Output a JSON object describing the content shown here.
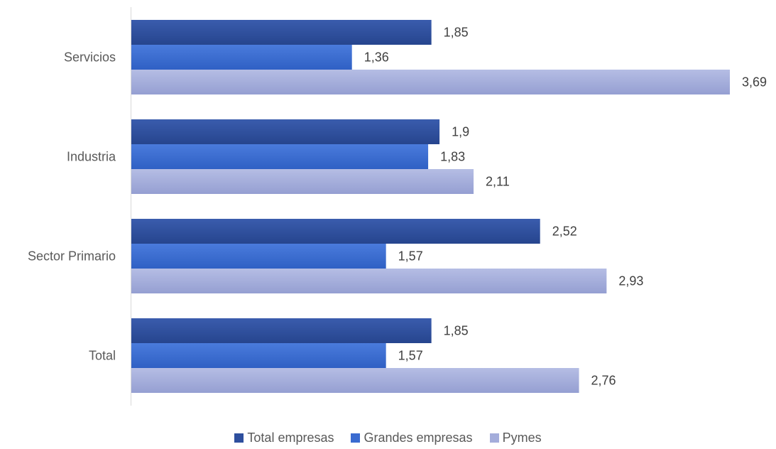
{
  "chart_data": {
    "type": "bar",
    "orientation": "horizontal",
    "categories": [
      "Servicios",
      "Industria",
      "Sector Primario",
      "Total"
    ],
    "series": [
      {
        "name": "Total empresas",
        "values": [
          1.85,
          1.9,
          2.52,
          1.85
        ],
        "labels": [
          "1,85",
          "1,9",
          "2,52",
          "1,85"
        ],
        "color": "#2E4F9E"
      },
      {
        "name": "Grandes empresas",
        "values": [
          1.36,
          1.83,
          1.57,
          1.57
        ],
        "labels": [
          "1,36",
          "1,83",
          "1,57",
          "1,57"
        ],
        "color": "#3A6BD0"
      },
      {
        "name": "Pymes",
        "values": [
          3.69,
          2.11,
          2.93,
          2.76
        ],
        "labels": [
          "3,69",
          "2,11",
          "2,93",
          "2,76"
        ],
        "color": "#A4ADDB"
      }
    ],
    "xlim": [
      0,
      3.69
    ],
    "grid": false,
    "legend": "bottom"
  }
}
